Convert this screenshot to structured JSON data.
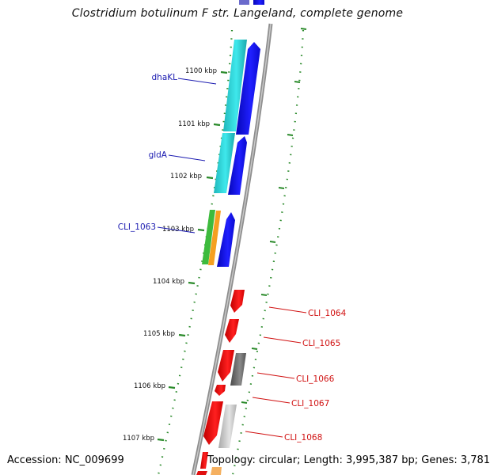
{
  "title": "Clostridium botulinum F str. Langeland, complete genome",
  "footer": {
    "accession": "Accession: NC_009699",
    "summary": "Topology: circular; Length: 3,995,387 bp; Genes: 3,781"
  },
  "colors": {
    "backbone": "#8a8a8a",
    "tick": "#2a8a2a",
    "forward_gene": "#1010e0",
    "cyan_gene": "#22d4d8",
    "reverse_gene": "#f01010",
    "forward_label": "#1a1ab0",
    "reverse_label": "#d01010",
    "grey_gene": "#6a6a6a",
    "green_gene": "#3dbb3d",
    "orange_gene": "#f5a020"
  },
  "ticks": [
    {
      "label": "1100 kbp"
    },
    {
      "label": "1101 kbp"
    },
    {
      "label": "1102 kbp"
    },
    {
      "label": "1103 kbp"
    },
    {
      "label": "1104 kbp"
    },
    {
      "label": "1105 kbp"
    },
    {
      "label": "1106 kbp"
    },
    {
      "label": "1107 kbp"
    }
  ],
  "gene_labels": {
    "left": [
      "dhaKL",
      "gldA",
      "CLI_1063"
    ],
    "right": [
      "CLI_1064",
      "CLI_1065",
      "CLI_1066",
      "CLI_1067",
      "CLI_1068"
    ]
  }
}
